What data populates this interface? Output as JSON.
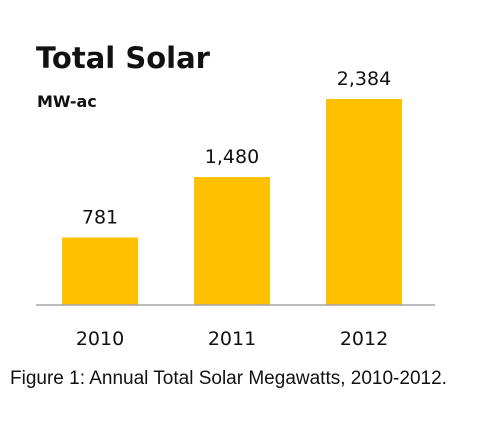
{
  "chart_data": {
    "type": "bar",
    "title": "Total Solar",
    "subtitle": "MW-ac",
    "categories": [
      "2010",
      "2011",
      "2012"
    ],
    "values": [
      781,
      1480,
      2384
    ],
    "value_labels": [
      "781",
      "1,480",
      "2,384"
    ],
    "xlabel": "",
    "ylabel": "",
    "ylim": [
      0,
      2600
    ],
    "grid": false,
    "legend": "none",
    "bar_color": "#FFC000"
  },
  "caption": "Figure 1: Annual Total Solar Megawatts, 2010-2012."
}
